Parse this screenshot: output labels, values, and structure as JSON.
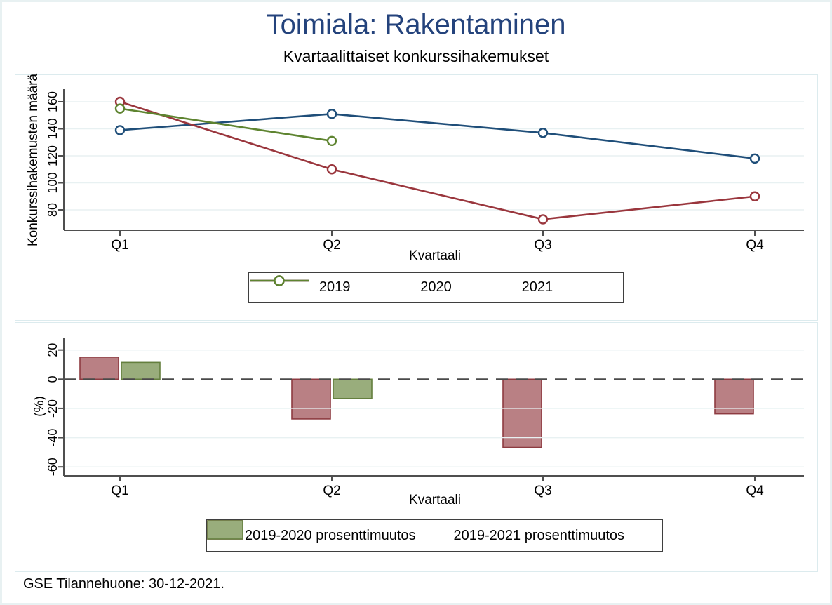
{
  "page": {
    "title": "Toimiala: Rakentaminen",
    "subtitle": "Kvartaalittaiset konkurssihakemukset",
    "footer": "GSE Tilannehuone: 30-12-2021."
  },
  "colors": {
    "title_blue": "#24437c",
    "axis": "#4f4f4f",
    "grid": "#e8f1f2",
    "zero_dash": "#4a4a4a",
    "series_2019": "#1f4e79",
    "series_2020": "#9a363d",
    "series_2021": "#5e8430",
    "bar_2019_2020_fill": "#b98084",
    "bar_2019_2020_stroke": "#8d3b41",
    "bar_2019_2021_fill": "#99ad7c",
    "bar_2019_2021_stroke": "#647f3e"
  },
  "chart_data": [
    {
      "type": "line",
      "title": "Kvartaalittaiset konkurssihakemukset",
      "categories": [
        "Q1",
        "Q2",
        "Q3",
        "Q4"
      ],
      "series": [
        {
          "name": "2019",
          "color": "#1f4e79",
          "values": [
            139,
            151,
            137,
            118
          ]
        },
        {
          "name": "2020",
          "color": "#9a363d",
          "values": [
            160,
            110,
            73,
            90
          ]
        },
        {
          "name": "2021",
          "color": "#5e8430",
          "values": [
            155,
            131,
            null,
            null
          ]
        }
      ],
      "xlabel": "Kvartaali",
      "ylabel": "Konkurssihakemusten määrä",
      "yticks": [
        80,
        100,
        120,
        140,
        160
      ],
      "ylim": [
        65,
        169
      ],
      "grid": true,
      "marker": "hollow-circle",
      "legend_position": "bottom"
    },
    {
      "type": "bar",
      "categories": [
        "Q1",
        "Q2",
        "Q3",
        "Q4"
      ],
      "series": [
        {
          "name": "2019-2020 prosenttimuutos",
          "fill": "#b98084",
          "stroke": "#8d3b41",
          "values": [
            15.1,
            -27.2,
            -46.7,
            -23.7
          ]
        },
        {
          "name": "2019-2021 prosenttimuutos",
          "fill": "#99ad7c",
          "stroke": "#647f3e",
          "values": [
            11.5,
            -13.2,
            null,
            null
          ]
        }
      ],
      "xlabel": "Kvartaali",
      "ylabel": "(%)",
      "yticks": [
        20,
        0,
        -20,
        -40,
        -60
      ],
      "ylim": [
        -72,
        28
      ],
      "zero_line": "dashed",
      "grid": true,
      "legend_position": "bottom"
    }
  ]
}
